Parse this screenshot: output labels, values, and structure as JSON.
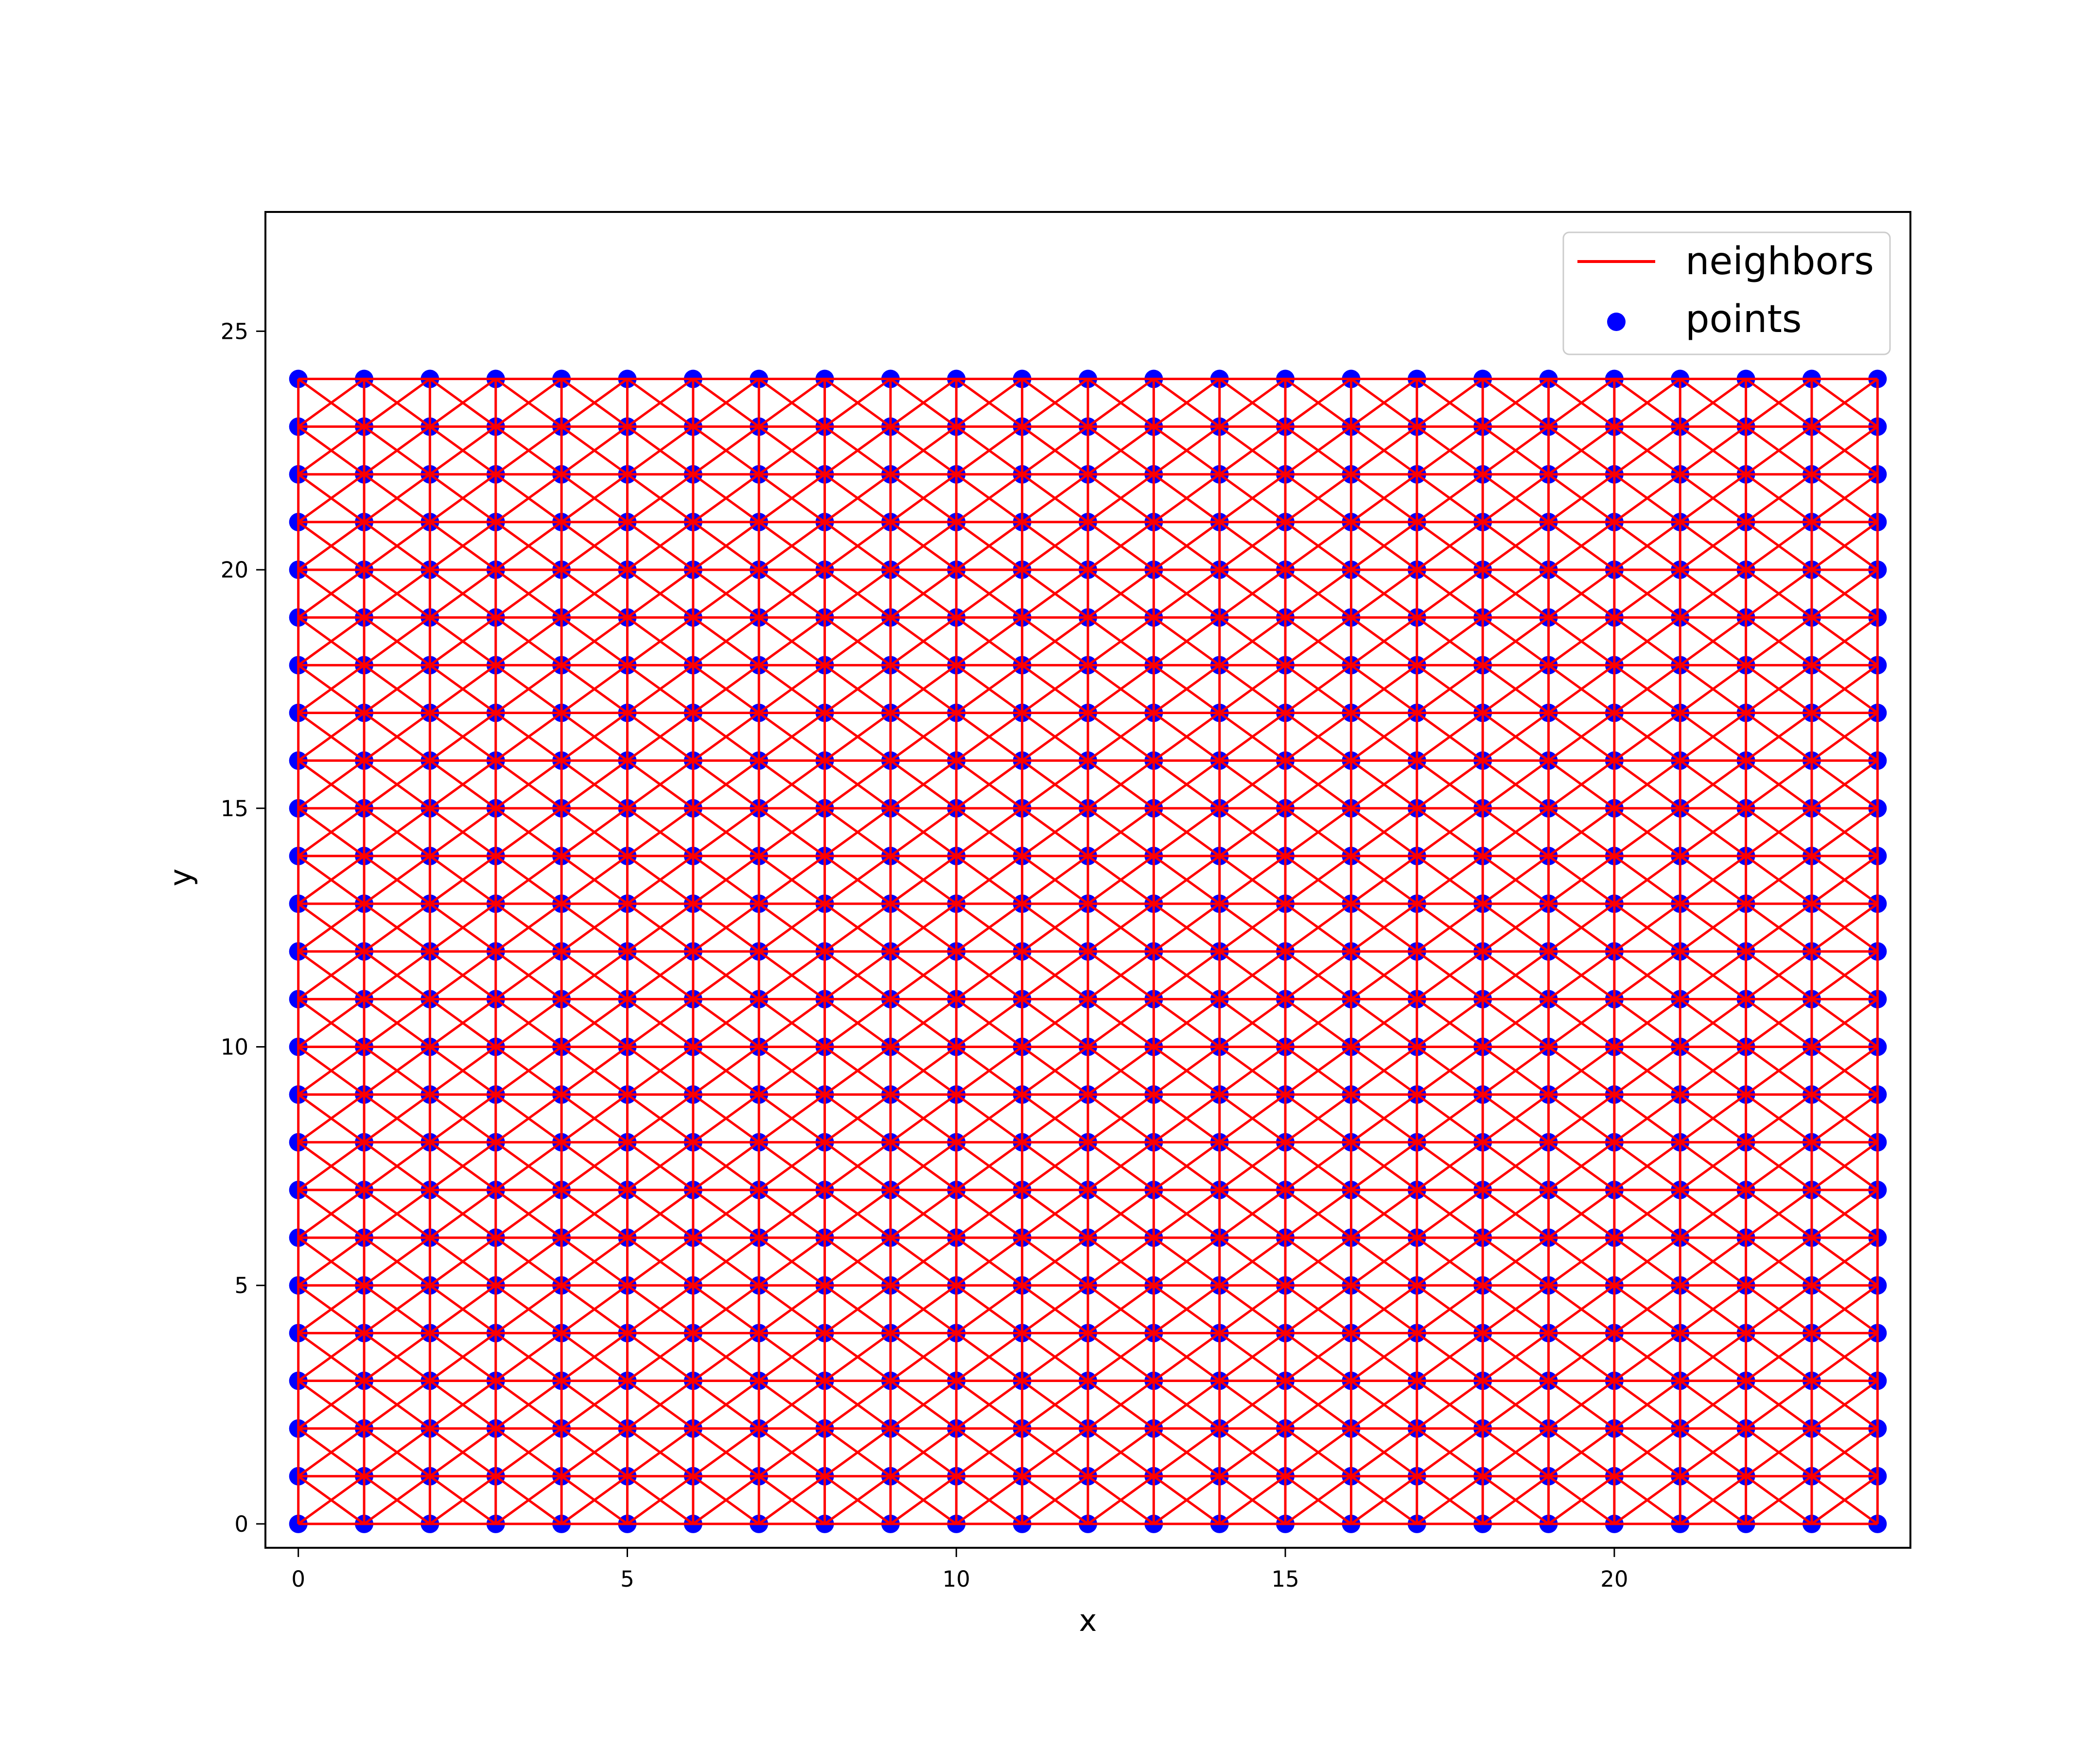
{
  "chart_data": {
    "type": "scatter",
    "title": "",
    "xlabel": "x",
    "ylabel": "y",
    "xlim": [
      -0.5,
      24.5
    ],
    "ylim": [
      -0.5,
      27.5
    ],
    "grid": false,
    "x_ticks": [
      0,
      5,
      10,
      15,
      20
    ],
    "y_ticks": [
      0,
      5,
      10,
      15,
      20,
      25
    ],
    "points_grid": {
      "x_start": 0,
      "x_end": 24,
      "y_start": 0,
      "y_end": 24,
      "step": 1
    },
    "neighbor_connectivity": "horizontal, vertical and diagonal links between adjacent grid points",
    "legend": {
      "position": "upper-right",
      "entries": [
        {
          "label": "neighbors",
          "marker": "line",
          "color": "#ff0000"
        },
        {
          "label": "points",
          "marker": "dot",
          "color": "#0000ff"
        }
      ]
    },
    "series": [
      {
        "name": "neighbors",
        "kind": "line",
        "color": "#ff0000"
      },
      {
        "name": "points",
        "kind": "scatter",
        "color": "#0000ff"
      }
    ]
  }
}
